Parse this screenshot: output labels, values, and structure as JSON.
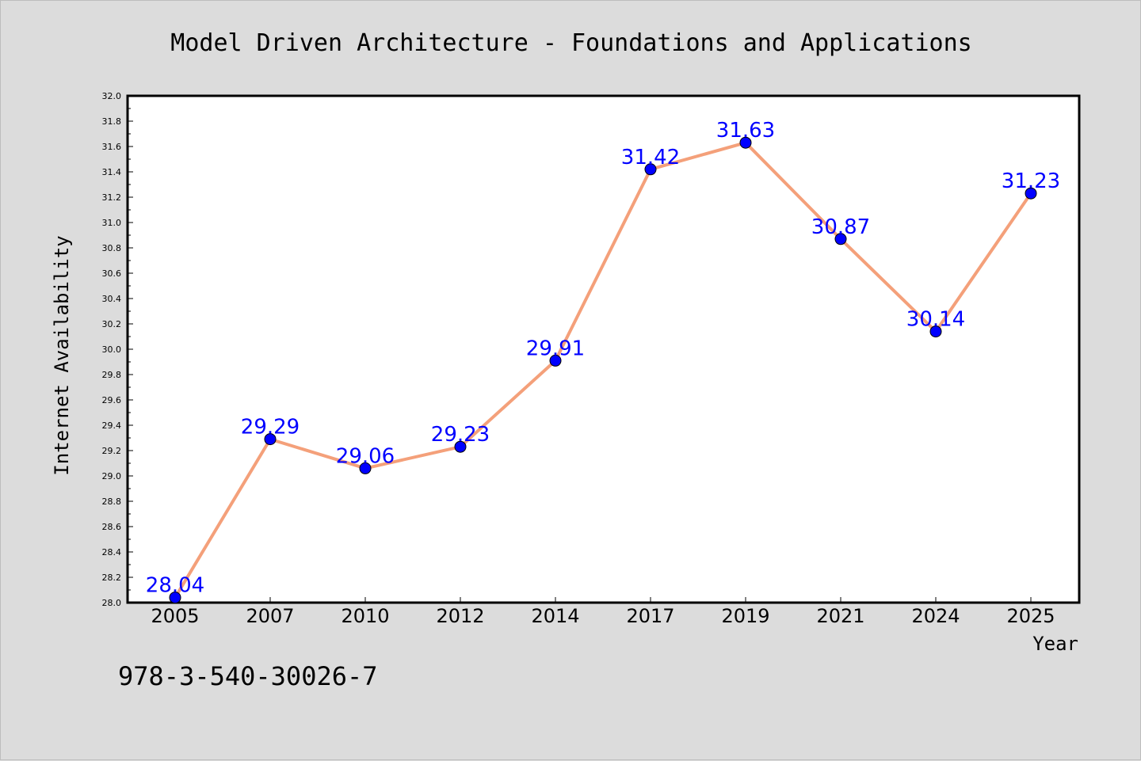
{
  "chart_data": {
    "type": "line",
    "title": "Model Driven Architecture - Foundations and Applications",
    "xlabel": "Year",
    "ylabel": "Internet Availability",
    "categories": [
      "2005",
      "2007",
      "2010",
      "2012",
      "2014",
      "2017",
      "2019",
      "2021",
      "2024",
      "2025"
    ],
    "series": [
      {
        "values": [
          28.04,
          29.29,
          29.06,
          29.23,
          29.91,
          31.42,
          31.63,
          30.87,
          30.14,
          31.23
        ],
        "line_color": "#f4a07a",
        "marker_color": "#0000ff"
      }
    ],
    "data_labels": [
      "28.04",
      "29.29",
      "29.06",
      "29.23",
      "29.91",
      "31.42",
      "31.63",
      "30.87",
      "30.14",
      "31.23"
    ],
    "ylim": [
      28.0,
      32.0
    ],
    "yticks": [
      "28.0",
      "28.2",
      "28.4",
      "28.6",
      "28.8",
      "29.0",
      "29.2",
      "29.4",
      "29.6",
      "29.8",
      "30.0",
      "30.2",
      "30.4",
      "30.6",
      "30.8",
      "31.0",
      "31.2",
      "31.4",
      "31.6",
      "31.8",
      "32.0"
    ],
    "grid": false,
    "legend": "none"
  },
  "footer": {
    "isbn": "978-3-540-30026-7"
  },
  "colors": {
    "background": "#dcdcdc",
    "plot_background": "#ffffff",
    "line": "#f4a07a",
    "marker": "#0000ff",
    "data_label": "#0000ff"
  }
}
